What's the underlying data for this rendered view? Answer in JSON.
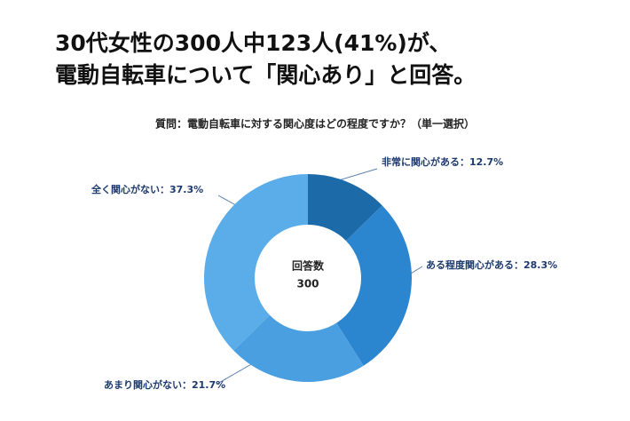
{
  "chart_data": {
    "type": "donut",
    "title_lines": [
      "30代女性の300人中123人(41%)が、",
      "電動自転車について「関心あり」と回答。"
    ],
    "subtitle": "質問：電動自転車に対する関心度はどの程度ですか？（単一選択）",
    "center_label": "回答数",
    "center_value": 300,
    "values": [
      12.7,
      28.3,
      21.7,
      37.3
    ],
    "value_labels": [
      "非常に関心がある：12.7%",
      "ある程度関心がある：28.3%",
      "あまり関心がない：21.7%",
      "全く関心がない：37.3%"
    ],
    "colors": [
      "#1c6aa8",
      "#2b86cf",
      "#4a9fe0",
      "#5aade9"
    ]
  }
}
